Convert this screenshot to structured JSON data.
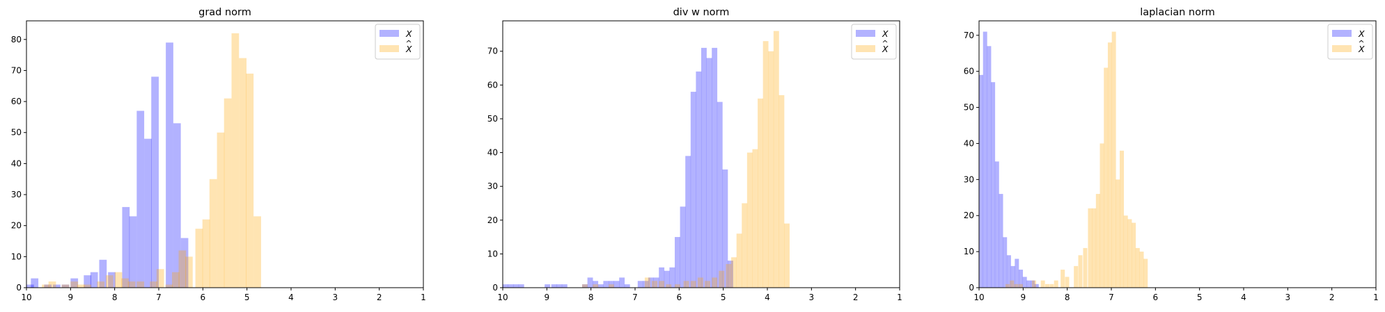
{
  "colors": {
    "x_series": "#0000ff",
    "xhat_series": "#ffa500",
    "alpha": 0.3
  },
  "legend_labels": {
    "x": "X",
    "xhat": "X",
    "xhat_accent": "^"
  },
  "chart_data": [
    {
      "type": "histogram",
      "title": "grad norm",
      "xlim": [
        10,
        1
      ],
      "ylim": [
        0,
        86
      ],
      "x_ticks": [
        "10",
        "9",
        "8",
        "7",
        "6",
        "5",
        "4",
        "3",
        "2",
        "1"
      ],
      "y_ticks": [
        "0",
        "10",
        "20",
        "30",
        "40",
        "50",
        "60",
        "70",
        "80"
      ],
      "legend_position": "top-right",
      "series": [
        {
          "name": "X",
          "key": "x",
          "bin_width": 0.165,
          "bins": [
            [
              10.0,
              1
            ],
            [
              9.9,
              3
            ],
            [
              9.6,
              1
            ],
            [
              9.4,
              1
            ],
            [
              9.2,
              1
            ],
            [
              9.0,
              3
            ],
            [
              8.7,
              4
            ],
            [
              8.55,
              5
            ],
            [
              8.35,
              9
            ],
            [
              8.15,
              5
            ],
            [
              7.83,
              26
            ],
            [
              7.67,
              23
            ],
            [
              7.5,
              57
            ],
            [
              7.33,
              48
            ],
            [
              7.17,
              68
            ],
            [
              6.84,
              79
            ],
            [
              6.67,
              53
            ],
            [
              6.5,
              16
            ]
          ]
        },
        {
          "name": "X̂",
          "key": "xhat",
          "bin_width": 0.165,
          "bins": [
            [
              9.65,
              1
            ],
            [
              9.5,
              2
            ],
            [
              9.2,
              1
            ],
            [
              9.0,
              2
            ],
            [
              8.85,
              1
            ],
            [
              8.7,
              1
            ],
            [
              8.4,
              2
            ],
            [
              8.2,
              4
            ],
            [
              8.0,
              5
            ],
            [
              7.85,
              3
            ],
            [
              7.7,
              2
            ],
            [
              7.5,
              2
            ],
            [
              7.2,
              2
            ],
            [
              7.05,
              6
            ],
            [
              6.85,
              1
            ],
            [
              6.7,
              5
            ],
            [
              6.55,
              12
            ],
            [
              6.4,
              10
            ],
            [
              6.17,
              19
            ],
            [
              6.01,
              22
            ],
            [
              5.85,
              35
            ],
            [
              5.68,
              50
            ],
            [
              5.52,
              61
            ],
            [
              5.35,
              82
            ],
            [
              5.18,
              74
            ],
            [
              5.02,
              69
            ],
            [
              4.85,
              23
            ]
          ]
        }
      ]
    },
    {
      "type": "histogram",
      "title": "div w norm",
      "xlim": [
        10,
        1
      ],
      "ylim": [
        0,
        79
      ],
      "x_ticks": [
        "10",
        "9",
        "8",
        "7",
        "6",
        "5",
        "4",
        "3",
        "2",
        "1"
      ],
      "y_ticks": [
        "0",
        "10",
        "20",
        "30",
        "40",
        "50",
        "60",
        "70"
      ],
      "legend_position": "top-right",
      "series": [
        {
          "name": "X",
          "key": "x",
          "bin_width": 0.12,
          "bins": [
            [
              10.0,
              1
            ],
            [
              9.88,
              1
            ],
            [
              9.76,
              1
            ],
            [
              9.64,
              1
            ],
            [
              9.05,
              1
            ],
            [
              8.9,
              1
            ],
            [
              8.78,
              1
            ],
            [
              8.66,
              1
            ],
            [
              8.2,
              1
            ],
            [
              8.08,
              3
            ],
            [
              7.96,
              2
            ],
            [
              7.84,
              1
            ],
            [
              7.72,
              2
            ],
            [
              7.6,
              2
            ],
            [
              7.48,
              2
            ],
            [
              7.36,
              3
            ],
            [
              7.24,
              1
            ],
            [
              6.94,
              2
            ],
            [
              6.82,
              2
            ],
            [
              6.7,
              3
            ],
            [
              6.58,
              3
            ],
            [
              6.46,
              6
            ],
            [
              6.34,
              5
            ],
            [
              6.22,
              6
            ],
            [
              6.1,
              15
            ],
            [
              5.98,
              24
            ],
            [
              5.86,
              39
            ],
            [
              5.74,
              58
            ],
            [
              5.62,
              64
            ],
            [
              5.5,
              71
            ],
            [
              5.38,
              68
            ],
            [
              5.26,
              71
            ],
            [
              5.14,
              55
            ],
            [
              5.02,
              35
            ],
            [
              4.9,
              8
            ]
          ]
        },
        {
          "name": "X̂",
          "key": "xhat",
          "bin_width": 0.12,
          "bins": [
            [
              8.2,
              1
            ],
            [
              7.96,
              1
            ],
            [
              7.6,
              1
            ],
            [
              6.78,
              3
            ],
            [
              6.62,
              2
            ],
            [
              6.46,
              2
            ],
            [
              6.3,
              1
            ],
            [
              6.1,
              1
            ],
            [
              5.9,
              2
            ],
            [
              5.74,
              2
            ],
            [
              5.58,
              3
            ],
            [
              5.42,
              2
            ],
            [
              5.26,
              3
            ],
            [
              5.1,
              5
            ],
            [
              4.94,
              7
            ],
            [
              4.82,
              9
            ],
            [
              4.7,
              16
            ],
            [
              4.58,
              25
            ],
            [
              4.46,
              40
            ],
            [
              4.34,
              41
            ],
            [
              4.22,
              56
            ],
            [
              4.1,
              73
            ],
            [
              3.98,
              70
            ],
            [
              3.86,
              76
            ],
            [
              3.74,
              57
            ],
            [
              3.62,
              19
            ]
          ]
        }
      ]
    },
    {
      "type": "histogram",
      "title": "laplacian norm",
      "xlim": [
        10,
        1
      ],
      "ylim": [
        0,
        74
      ],
      "x_ticks": [
        "10",
        "9",
        "8",
        "7",
        "6",
        "5",
        "4",
        "3",
        "2",
        "1"
      ],
      "y_ticks": [
        "0",
        "10",
        "20",
        "30",
        "40",
        "50",
        "60",
        "70"
      ],
      "legend_position": "top-right",
      "series": [
        {
          "name": "X",
          "key": "x",
          "bin_width": 0.09,
          "bins": [
            [
              10.0,
              59
            ],
            [
              9.91,
              71
            ],
            [
              9.82,
              67
            ],
            [
              9.73,
              57
            ],
            [
              9.64,
              35
            ],
            [
              9.55,
              26
            ],
            [
              9.46,
              14
            ],
            [
              9.37,
              9
            ],
            [
              9.28,
              6
            ],
            [
              9.19,
              8
            ],
            [
              9.1,
              5
            ],
            [
              9.01,
              3
            ],
            [
              8.92,
              2
            ],
            [
              8.83,
              2
            ],
            [
              8.74,
              1
            ]
          ]
        },
        {
          "name": "X̂",
          "key": "xhat",
          "bin_width": 0.09,
          "bins": [
            [
              9.4,
              1
            ],
            [
              9.3,
              2
            ],
            [
              9.2,
              1
            ],
            [
              9.1,
              1
            ],
            [
              8.8,
              2
            ],
            [
              8.6,
              2
            ],
            [
              8.5,
              1
            ],
            [
              8.4,
              1
            ],
            [
              8.3,
              2
            ],
            [
              8.15,
              5
            ],
            [
              8.05,
              3
            ],
            [
              7.85,
              6
            ],
            [
              7.75,
              9
            ],
            [
              7.64,
              11
            ],
            [
              7.53,
              22
            ],
            [
              7.44,
              22
            ],
            [
              7.35,
              26
            ],
            [
              7.26,
              40
            ],
            [
              7.17,
              61
            ],
            [
              7.08,
              68
            ],
            [
              6.99,
              71
            ],
            [
              6.9,
              30
            ],
            [
              6.81,
              38
            ],
            [
              6.72,
              20
            ],
            [
              6.63,
              19
            ],
            [
              6.54,
              18
            ],
            [
              6.45,
              11
            ],
            [
              6.36,
              10
            ],
            [
              6.27,
              8
            ]
          ]
        }
      ]
    }
  ]
}
